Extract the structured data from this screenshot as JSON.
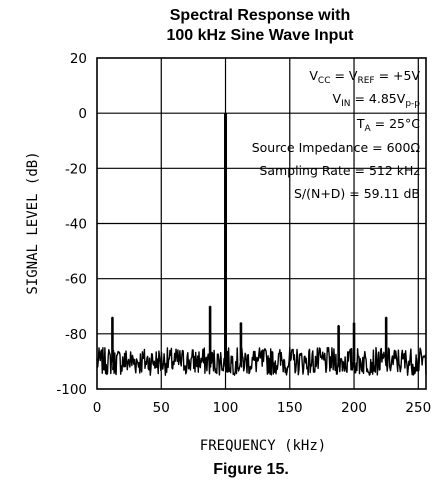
{
  "chart_data": {
    "type": "line",
    "title_line1": "Spectral Response with",
    "title_line2": "100 kHz Sine Wave Input",
    "xlabel": "FREQUENCY (kHz)",
    "ylabel": "SIGNAL LEVEL (dB)",
    "xlim": [
      0,
      256
    ],
    "ylim": [
      -100,
      20
    ],
    "xticks": [
      "0",
      "50",
      "100",
      "150",
      "200",
      "250"
    ],
    "xtick_values": [
      0,
      50,
      100,
      150,
      200,
      250
    ],
    "yticks": [
      "20",
      "0",
      "-20",
      "-40",
      "-60",
      "-80",
      "-100"
    ],
    "ytick_values": [
      20,
      0,
      -20,
      -40,
      -60,
      -80,
      -100
    ],
    "grid": true,
    "series": [
      {
        "noise_floor_db": -90,
        "noise_band_db": [
          -95,
          -85
        ],
        "spurs": [
          {
            "x": 12,
            "y": -74
          },
          {
            "x": 88,
            "y": -70
          },
          {
            "x": 100,
            "y": 0
          },
          {
            "x": 112,
            "y": -76
          },
          {
            "x": 188,
            "y": -77
          },
          {
            "x": 200,
            "y": -76
          },
          {
            "x": 225,
            "y": -74
          }
        ]
      }
    ],
    "annotations": [
      {
        "main": "V",
        "sub1": "CC",
        "mid": " = V",
        "sub2": "REF",
        "tail": " = +5V"
      },
      {
        "main": "V",
        "sub1": "IN",
        "mid": " = 4.85V",
        "sub2": "p-p",
        "tail": ""
      },
      {
        "main": "T",
        "sub1": "A",
        "mid": " = 25°C",
        "sub2": "",
        "tail": ""
      },
      {
        "main": "Source Impedance = 600Ω",
        "sub1": "",
        "mid": "",
        "sub2": "",
        "tail": ""
      },
      {
        "main": "Sampling Rate = 512 kHz",
        "sub1": "",
        "mid": "",
        "sub2": "",
        "tail": ""
      },
      {
        "main": "S/(N+D) = 59.11 dB",
        "sub1": "",
        "mid": "",
        "sub2": "",
        "tail": ""
      }
    ]
  },
  "caption": "Figure 15."
}
